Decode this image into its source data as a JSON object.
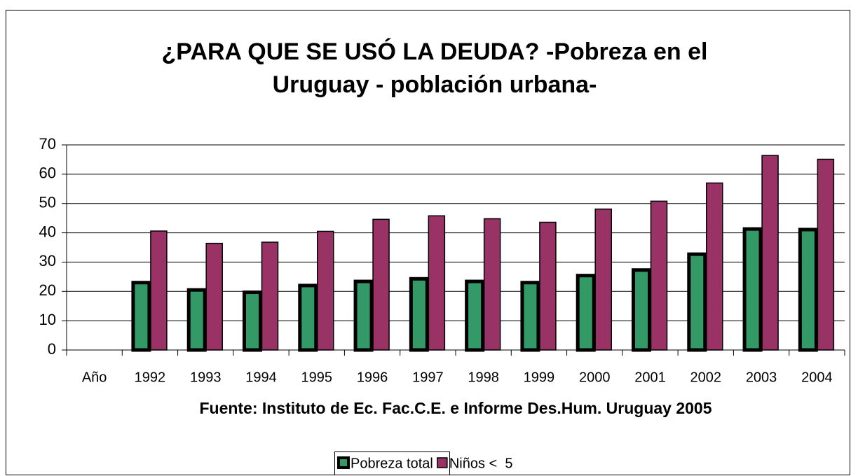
{
  "chart_data": {
    "type": "bar",
    "title": [
      "¿PARA QUE SE USÓ LA DEUDA? -Pobreza en el",
      "Uruguay - población urbana-"
    ],
    "x_label": "Fuente: Instituto de Ec. Fac.C.E. e Informe Des.Hum. Uruguay 2005",
    "categories": [
      "Año",
      "1992",
      "1993",
      "1994",
      "1995",
      "1996",
      "1997",
      "1998",
      "1999",
      "2000",
      "2001",
      "2002",
      "2003",
      "2004"
    ],
    "series": [
      {
        "name": "Pobreza total",
        "color": "#339966",
        "values": [
          null,
          23,
          20.5,
          19.7,
          22,
          23.4,
          24.3,
          23.4,
          23,
          25.4,
          27.3,
          32.7,
          41.3,
          41.1
        ]
      },
      {
        "name": "Niños <  5",
        "color": "#993366",
        "values": [
          null,
          40.6,
          36.4,
          36.8,
          40.5,
          44.6,
          45.8,
          44.8,
          43.6,
          48.1,
          50.8,
          57,
          66.4,
          65.1
        ]
      }
    ],
    "ylim": [
      0,
      70
    ],
    "yticks": [
      0,
      10,
      20,
      30,
      40,
      50,
      60,
      70
    ],
    "grid": true,
    "legend": "bottom"
  }
}
